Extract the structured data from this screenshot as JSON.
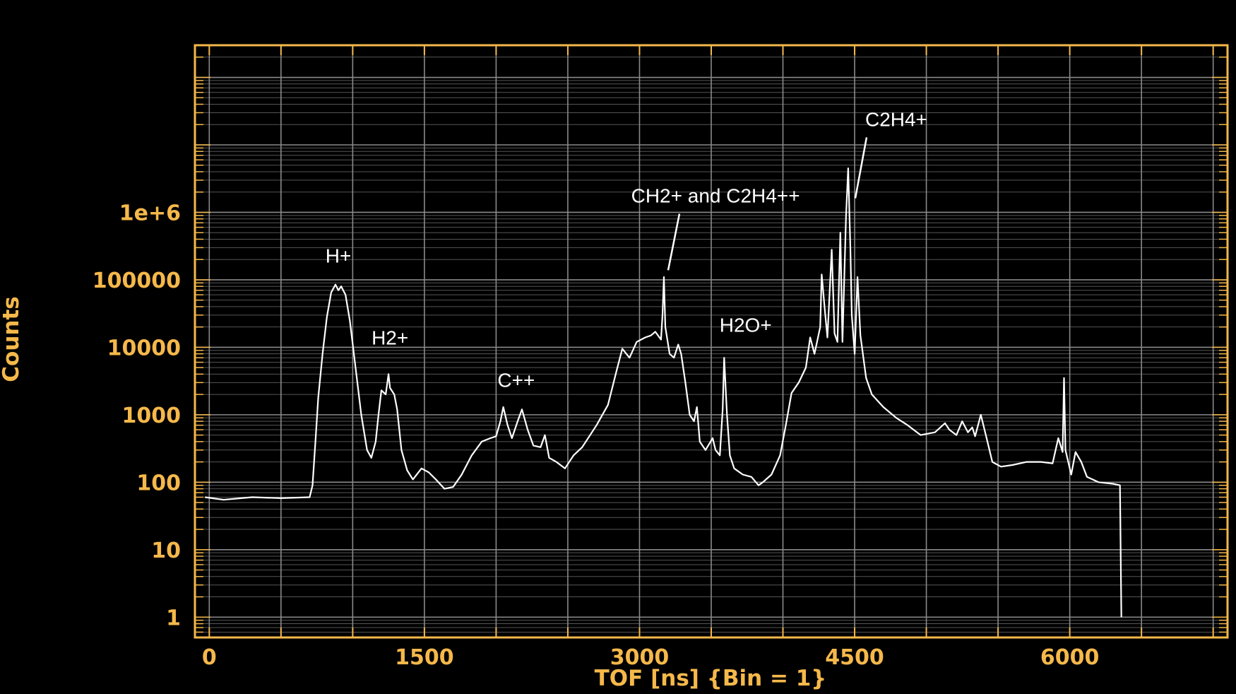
{
  "chart_data": {
    "type": "line",
    "title": "",
    "xlabel": "TOF [ns] {Bin = 1}",
    "ylabel": "Counts",
    "xlim": [
      -100,
      7100
    ],
    "ylim": [
      0.5,
      300000000
    ],
    "yscale": "log",
    "grid": true,
    "x_ticks": [
      0,
      1500,
      3000,
      4500,
      6000
    ],
    "x_tick_labels": [
      "0",
      "1500",
      "3000",
      "4500",
      "6000"
    ],
    "y_ticks": [
      1,
      10,
      100,
      1000,
      10000,
      100000,
      1000000
    ],
    "y_tick_labels": [
      "1",
      "10",
      "100",
      "1000",
      "10000",
      "100000",
      "1e+6"
    ],
    "colors": {
      "background": "#000000",
      "frame": "#f5b84a",
      "labels": "#f5b84a",
      "grid": "#8a8a8a",
      "trace": "#ffffff",
      "annotation": "#ffffff"
    },
    "series": [
      {
        "points": [
          [
            -30,
            60
          ],
          [
            100,
            55
          ],
          [
            300,
            60
          ],
          [
            500,
            58
          ],
          [
            700,
            60
          ],
          [
            720,
            90
          ],
          [
            740,
            400
          ],
          [
            760,
            1800
          ],
          [
            790,
            8000
          ],
          [
            820,
            28000
          ],
          [
            850,
            65000
          ],
          [
            880,
            85000
          ],
          [
            900,
            70000
          ],
          [
            920,
            80000
          ],
          [
            950,
            60000
          ],
          [
            980,
            25000
          ],
          [
            1020,
            5000
          ],
          [
            1060,
            1000
          ],
          [
            1100,
            300
          ],
          [
            1130,
            230
          ],
          [
            1160,
            400
          ],
          [
            1180,
            1000
          ],
          [
            1200,
            2300
          ],
          [
            1230,
            2000
          ],
          [
            1250,
            4000
          ],
          [
            1260,
            2500
          ],
          [
            1290,
            2000
          ],
          [
            1310,
            1200
          ],
          [
            1340,
            300
          ],
          [
            1380,
            150
          ],
          [
            1420,
            110
          ],
          [
            1480,
            160
          ],
          [
            1530,
            140
          ],
          [
            1580,
            110
          ],
          [
            1640,
            80
          ],
          [
            1700,
            85
          ],
          [
            1760,
            130
          ],
          [
            1830,
            250
          ],
          [
            1900,
            400
          ],
          [
            1960,
            450
          ],
          [
            2000,
            480
          ],
          [
            2030,
            800
          ],
          [
            2050,
            1300
          ],
          [
            2080,
            700
          ],
          [
            2110,
            450
          ],
          [
            2150,
            800
          ],
          [
            2180,
            1200
          ],
          [
            2220,
            600
          ],
          [
            2260,
            350
          ],
          [
            2310,
            330
          ],
          [
            2340,
            500
          ],
          [
            2370,
            230
          ],
          [
            2420,
            200
          ],
          [
            2480,
            160
          ],
          [
            2540,
            250
          ],
          [
            2600,
            330
          ],
          [
            2700,
            700
          ],
          [
            2780,
            1400
          ],
          [
            2840,
            4500
          ],
          [
            2880,
            9500
          ],
          [
            2930,
            7000
          ],
          [
            2980,
            12000
          ],
          [
            3040,
            14000
          ],
          [
            3080,
            15000
          ],
          [
            3110,
            17000
          ],
          [
            3150,
            13000
          ],
          [
            3160,
            30000
          ],
          [
            3170,
            110000
          ],
          [
            3180,
            20000
          ],
          [
            3210,
            8000
          ],
          [
            3240,
            7000
          ],
          [
            3270,
            11000
          ],
          [
            3290,
            8000
          ],
          [
            3320,
            3000
          ],
          [
            3350,
            1000
          ],
          [
            3380,
            800
          ],
          [
            3400,
            1300
          ],
          [
            3420,
            400
          ],
          [
            3460,
            300
          ],
          [
            3510,
            450
          ],
          [
            3530,
            300
          ],
          [
            3560,
            250
          ],
          [
            3580,
            1200
          ],
          [
            3590,
            7000
          ],
          [
            3610,
            1000
          ],
          [
            3630,
            250
          ],
          [
            3660,
            160
          ],
          [
            3720,
            130
          ],
          [
            3780,
            120
          ],
          [
            3830,
            90
          ],
          [
            3860,
            100
          ],
          [
            3920,
            130
          ],
          [
            3980,
            250
          ],
          [
            4020,
            700
          ],
          [
            4060,
            2100
          ],
          [
            4110,
            3000
          ],
          [
            4160,
            5000
          ],
          [
            4190,
            14000
          ],
          [
            4220,
            8000
          ],
          [
            4260,
            20000
          ],
          [
            4270,
            120000
          ],
          [
            4290,
            40000
          ],
          [
            4310,
            14000
          ],
          [
            4340,
            280000
          ],
          [
            4360,
            16000
          ],
          [
            4380,
            12000
          ],
          [
            4400,
            500000
          ],
          [
            4415,
            12000
          ],
          [
            4440,
            900000
          ],
          [
            4455,
            4500000
          ],
          [
            4470,
            300000
          ],
          [
            4480,
            30000
          ],
          [
            4500,
            8000
          ],
          [
            4520,
            110000
          ],
          [
            4540,
            15000
          ],
          [
            4580,
            3500
          ],
          [
            4620,
            2000
          ],
          [
            4700,
            1300
          ],
          [
            4790,
            900
          ],
          [
            4870,
            700
          ],
          [
            4960,
            500
          ],
          [
            5060,
            550
          ],
          [
            5130,
            750
          ],
          [
            5160,
            600
          ],
          [
            5210,
            500
          ],
          [
            5250,
            800
          ],
          [
            5290,
            550
          ],
          [
            5320,
            650
          ],
          [
            5340,
            480
          ],
          [
            5380,
            1000
          ],
          [
            5420,
            450
          ],
          [
            5460,
            200
          ],
          [
            5520,
            170
          ],
          [
            5600,
            180
          ],
          [
            5700,
            200
          ],
          [
            5800,
            200
          ],
          [
            5880,
            190
          ],
          [
            5920,
            450
          ],
          [
            5950,
            280
          ],
          [
            5960,
            3500
          ],
          [
            5970,
            300
          ],
          [
            6010,
            130
          ],
          [
            6040,
            280
          ],
          [
            6080,
            200
          ],
          [
            6120,
            120
          ],
          [
            6200,
            100
          ],
          [
            6300,
            95
          ],
          [
            6350,
            90
          ],
          [
            6360,
            1
          ]
        ]
      }
    ],
    "annotations": [
      {
        "text": "H+",
        "x": 900,
        "y": 180000
      },
      {
        "text": "H2+",
        "x": 1260,
        "y": 11000
      },
      {
        "text": "C++",
        "x": 2140,
        "y": 2600
      },
      {
        "text": "CH2+ and C2H4++",
        "x": 3530,
        "y": 1400000,
        "pointer_to": [
          3170,
          120000
        ]
      },
      {
        "text": "H2O+",
        "x": 3740,
        "y": 17000
      },
      {
        "text": "C2H4+",
        "x": 4790,
        "y": 19000000,
        "pointer_to": [
          4475,
          1400000
        ]
      }
    ]
  }
}
